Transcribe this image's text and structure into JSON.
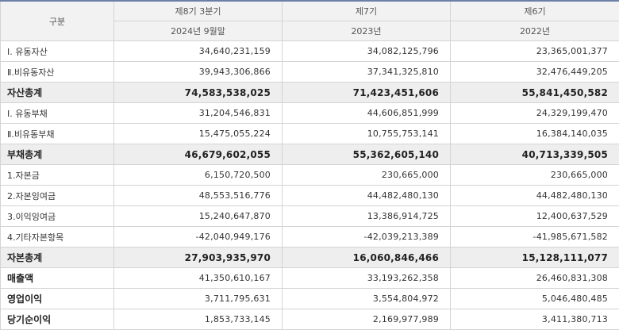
{
  "header": {
    "category": "구분",
    "periods": [
      {
        "name": "제8기 3분기",
        "date": "2024년 9월말"
      },
      {
        "name": "제7기",
        "date": "2023년"
      },
      {
        "name": "제6기",
        "date": "2022년"
      }
    ]
  },
  "rows": [
    {
      "label": "Ⅰ. 유동자산",
      "values": [
        "34,640,231,159",
        "34,082,125,796",
        "23,365,001,377"
      ]
    },
    {
      "label": "Ⅱ.비유동자산",
      "values": [
        "39,943,306,866",
        "37,341,325,810",
        "32,476,449,205"
      ]
    },
    {
      "label": "자산총계",
      "values": [
        "74,583,538,025",
        "71,423,451,606",
        "55,841,450,582"
      ]
    },
    {
      "label": "Ⅰ. 유동부채",
      "values": [
        "31,204,546,831",
        "44,606,851,999",
        "24,329,199,470"
      ]
    },
    {
      "label": "Ⅱ.비유동부채",
      "values": [
        "15,475,055,224",
        "10,755,753,141",
        "16,384,140,035"
      ]
    },
    {
      "label": "부채총계",
      "values": [
        "46,679,602,055",
        "55,362,605,140",
        "40,713,339,505"
      ]
    },
    {
      "label": "1.자본금",
      "values": [
        "6,150,720,500",
        "230,665,000",
        "230,665,000"
      ]
    },
    {
      "label": "2.자본잉여금",
      "values": [
        "48,553,516,776",
        "44,482,480,130",
        "44,482,480,130"
      ]
    },
    {
      "label": "3.이익잉여금",
      "values": [
        "15,240,647,870",
        "13,386,914,725",
        "12,400,637,529"
      ]
    },
    {
      "label": "4.기타자본항목",
      "values": [
        "-42,040,949,176",
        "-42,039,213,389",
        "-41,985,671,582"
      ]
    },
    {
      "label": "자본총계",
      "values": [
        "27,903,935,970",
        "16,060,846,466",
        "15,128,111,077"
      ]
    },
    {
      "label": "매출액",
      "values": [
        "41,350,610,167",
        "33,193,262,358",
        "26,460,831,308"
      ]
    },
    {
      "label": "영업이익",
      "values": [
        "3,711,795,631",
        "3,554,804,972",
        "5,046,480,485"
      ]
    },
    {
      "label": "당기순이익",
      "values": [
        "1,853,733,145",
        "2,169,977,989",
        "3,411,380,713"
      ]
    }
  ]
}
